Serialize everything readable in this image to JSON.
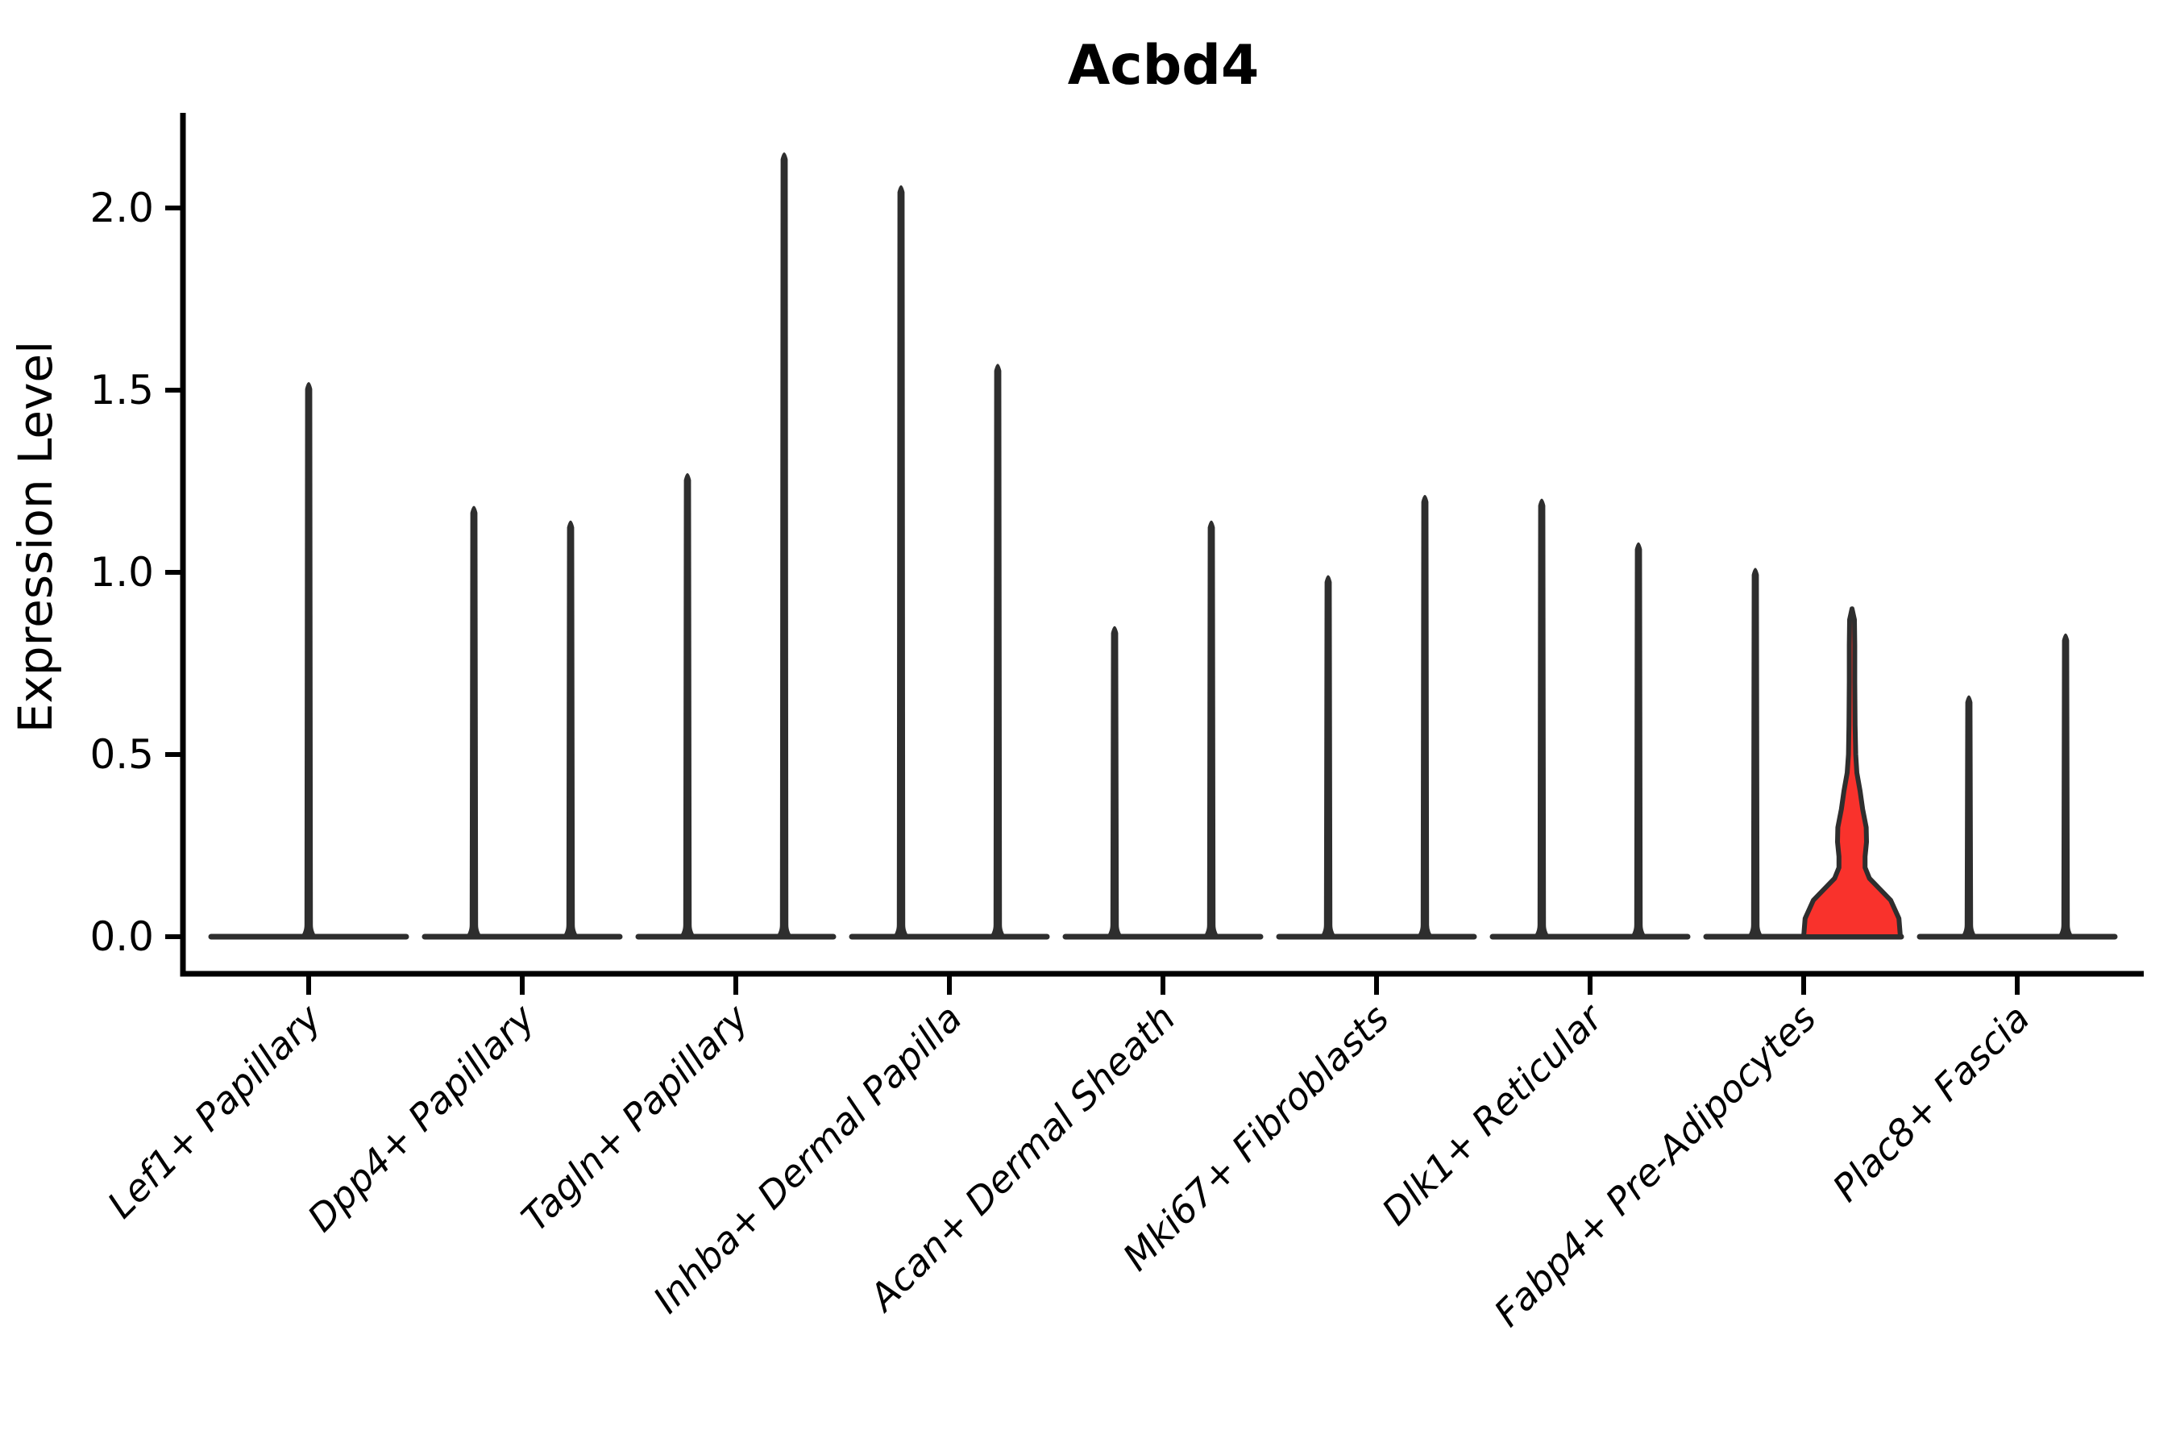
{
  "chart_data": {
    "type": "violin",
    "title": "Acbd4",
    "ylabel": "Expression Level",
    "xlabel": "",
    "ytick_labels": [
      "0.0",
      "0.5",
      "1.0",
      "1.5",
      "2.0"
    ],
    "ytick_values": [
      0.0,
      0.5,
      1.0,
      1.5,
      2.0
    ],
    "ylim": [
      -0.1,
      2.26
    ],
    "grid": false,
    "legend": "none",
    "background": "#ffffff",
    "axis_color": "#000000",
    "violin_line_color": "#2e2e2e",
    "highlight_fill_color": "#f9322c",
    "categories": [
      {
        "label": "Lef1+ Papillary",
        "violins": [
          {
            "pos": 0,
            "max": 1.53
          }
        ]
      },
      {
        "label": "Dpp4+ Papillary",
        "violins": [
          {
            "pos": -1,
            "max": 1.19
          },
          {
            "pos": 1,
            "max": 1.15
          }
        ]
      },
      {
        "label": "Tagln+ Papillary",
        "violins": [
          {
            "pos": -1,
            "max": 1.28
          },
          {
            "pos": 1,
            "max": 2.16
          }
        ]
      },
      {
        "label": "Inhba+ Dermal Papilla",
        "violins": [
          {
            "pos": -1,
            "max": 2.07
          },
          {
            "pos": 1,
            "max": 1.58
          }
        ]
      },
      {
        "label": "Acan+ Dermal Sheath",
        "violins": [
          {
            "pos": -1,
            "max": 0.86
          },
          {
            "pos": 1,
            "max": 1.15
          }
        ]
      },
      {
        "label": "Mki67+ Fibroblasts",
        "violins": [
          {
            "pos": -1,
            "max": 1.0
          },
          {
            "pos": 1,
            "max": 1.22
          }
        ]
      },
      {
        "label": "Dlk1+ Reticular",
        "violins": [
          {
            "pos": -1,
            "max": 1.21
          },
          {
            "pos": 1,
            "max": 1.09
          }
        ]
      },
      {
        "label": "Fabp4+ Pre-Adipocytes",
        "violins": [
          {
            "pos": -1,
            "max": 1.02
          },
          {
            "pos": 1,
            "max": 0.9,
            "highlight": true,
            "profile": [
              [
                0.0,
                1.0
              ],
              [
                0.05,
                0.97
              ],
              [
                0.1,
                0.8
              ],
              [
                0.13,
                0.58
              ],
              [
                0.16,
                0.36
              ],
              [
                0.19,
                0.27
              ],
              [
                0.22,
                0.27
              ],
              [
                0.26,
                0.3
              ],
              [
                0.3,
                0.295
              ],
              [
                0.35,
                0.22
              ],
              [
                0.4,
                0.165
              ],
              [
                0.45,
                0.1
              ],
              [
                0.5,
                0.075
              ],
              [
                0.58,
                0.062
              ],
              [
                0.7,
                0.058
              ],
              [
                0.8,
                0.055
              ],
              [
                0.87,
                0.05
              ],
              [
                0.9,
                0.0
              ]
            ]
          }
        ]
      },
      {
        "label": "Plac8+ Fascia",
        "violins": [
          {
            "pos": -1,
            "max": 0.67
          },
          {
            "pos": 1,
            "max": 0.84
          }
        ]
      }
    ]
  }
}
